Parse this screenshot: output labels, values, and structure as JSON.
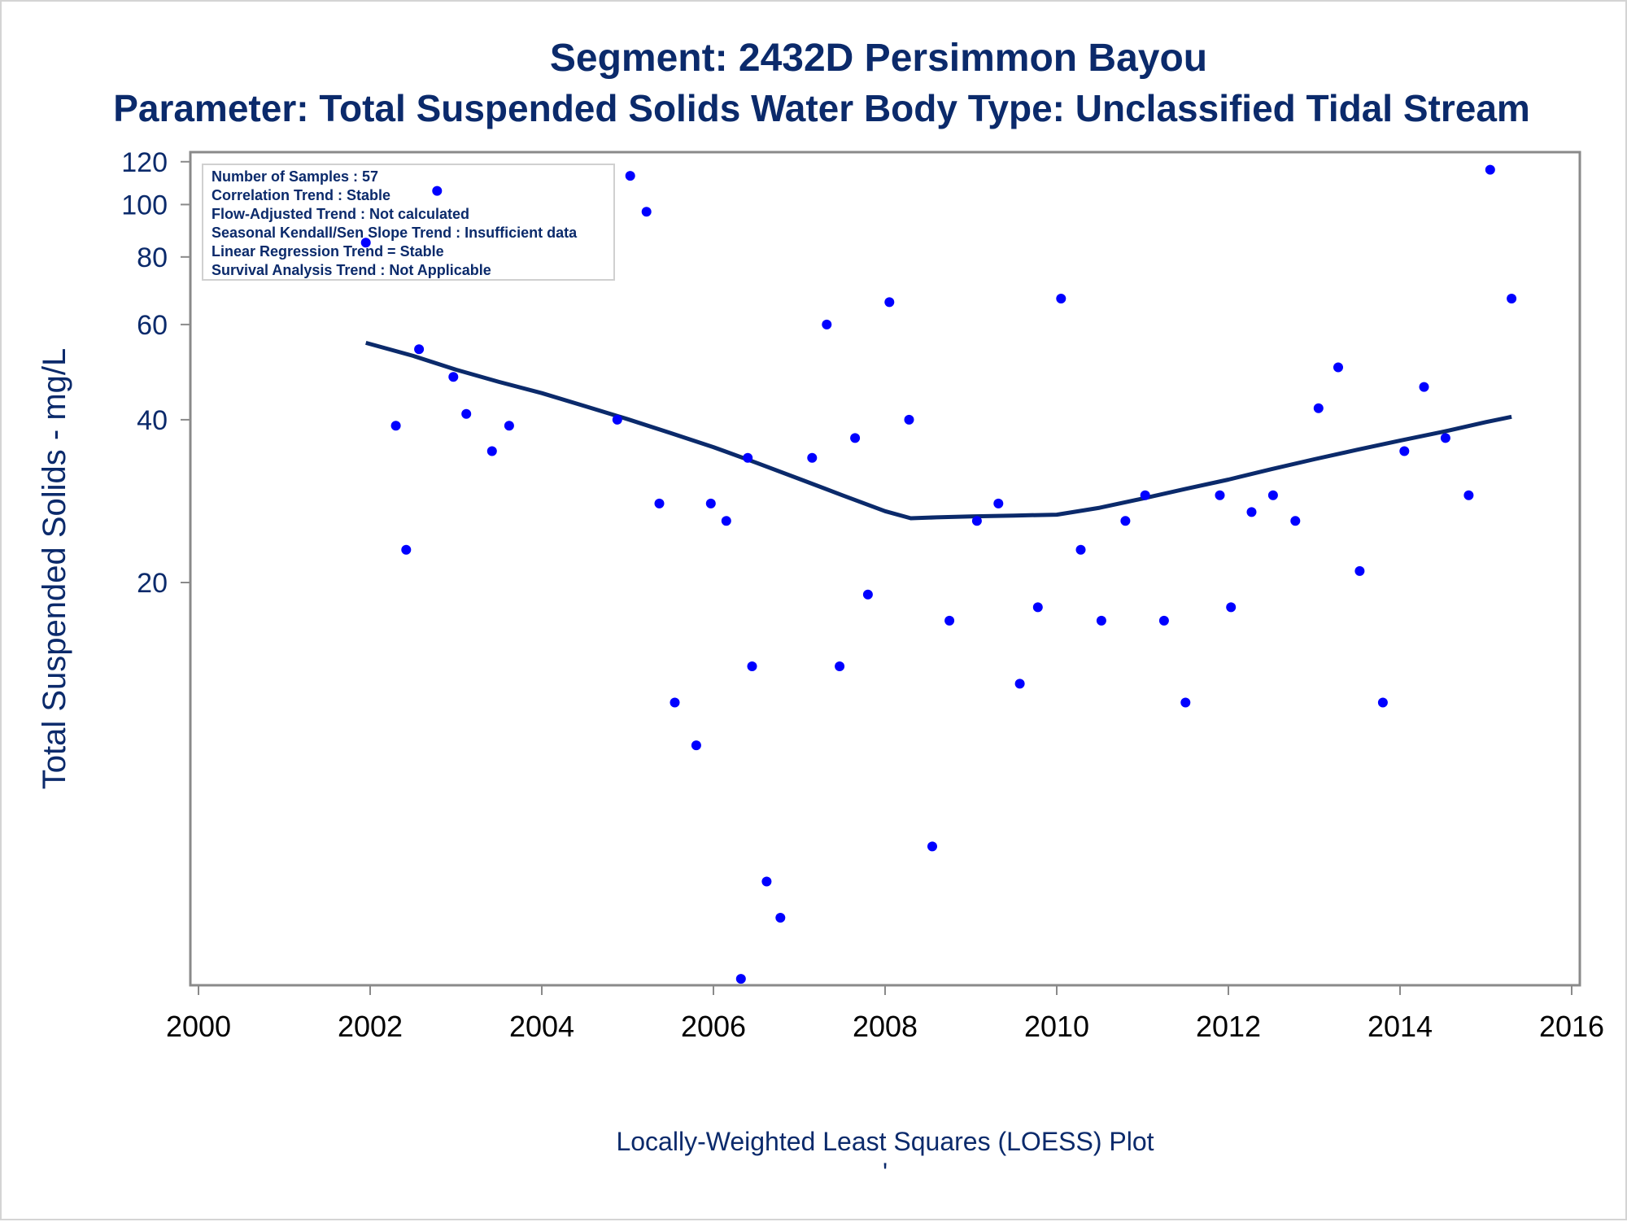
{
  "chart_data": {
    "type": "scatter",
    "title": "Segment: 2432D  Persimmon Bayou",
    "subtitle": "Parameter: Total Suspended Solids   Water Body Type: Unclassified Tidal Stream",
    "xlabel": "",
    "ylabel": "Total Suspended Solids - mg/L",
    "footnote": "Locally-Weighted Least Squares (LOESS) Plot",
    "footnote_mark": "'",
    "xlim": [
      2000,
      2016
    ],
    "ylim": [
      3.6,
      125
    ],
    "yscale": "log",
    "xticks": [
      "2000",
      "2002",
      "2004",
      "2006",
      "2008",
      "2010",
      "2012",
      "2014",
      "2016"
    ],
    "yticks": [
      "20",
      "40",
      "60",
      "80",
      "100",
      "120"
    ],
    "grid": false,
    "inset_box": {
      "position": "top-left",
      "lines": [
        "Number of Samples : 57",
        "Correlation Trend : Stable",
        "Flow-Adjusted Trend : Not calculated",
        "Seasonal Kendall/Sen Slope Trend : Insufficient data",
        "Linear Regression Trend = Stable",
        "Survival Analysis Trend : Not Applicable"
      ]
    },
    "colors": {
      "points": "#0000ff",
      "loess": "#0b2a6b",
      "text": "#0b2a6b",
      "frame": "#8a8a8a"
    },
    "series": [
      {
        "kind": "points",
        "x": [
          2001.95,
          2002.3,
          2002.42,
          2002.57,
          2002.78,
          2002.97,
          2003.12,
          2003.42,
          2003.62,
          2004.88,
          2005.03,
          2005.22,
          2005.37,
          2005.55,
          2005.8,
          2005.97,
          2006.15,
          2006.32,
          2006.4,
          2006.45,
          2006.62,
          2006.78,
          2007.15,
          2007.32,
          2007.47,
          2007.65,
          2007.8,
          2008.05,
          2008.28,
          2008.55,
          2008.75,
          2009.07,
          2009.32,
          2009.57,
          2009.78,
          2010.05,
          2010.28,
          2010.52,
          2010.8,
          2011.03,
          2011.25,
          2011.5,
          2011.9,
          2012.03,
          2012.27,
          2012.52,
          2012.78,
          2013.05,
          2013.28,
          2013.53,
          2013.8,
          2014.05,
          2014.28,
          2014.53,
          2014.8,
          2015.05,
          2015.3
        ],
        "y": [
          85,
          39,
          23,
          54,
          106,
          48,
          41,
          35,
          39,
          40,
          113,
          97,
          28,
          12,
          10,
          28,
          26,
          3.7,
          34,
          14,
          5.6,
          4.8,
          34,
          60,
          14,
          37,
          19,
          66,
          40,
          6.5,
          17,
          26,
          28,
          13,
          18,
          67,
          23,
          17,
          26,
          29,
          17,
          12,
          29,
          18,
          27,
          29,
          26,
          42,
          50,
          21,
          12,
          35,
          46,
          37,
          29,
          116,
          67
        ]
      },
      {
        "kind": "loess",
        "x": [
          2001.95,
          2002.5,
          2003.0,
          2003.5,
          2004.0,
          2004.5,
          2005.0,
          2005.5,
          2006.0,
          2006.5,
          2007.0,
          2007.5,
          2008.0,
          2008.3,
          2008.6,
          2009.0,
          2009.5,
          2010.0,
          2010.5,
          2011.0,
          2011.5,
          2012.0,
          2012.5,
          2013.0,
          2013.5,
          2014.0,
          2014.5,
          2015.0,
          2015.3
        ],
        "y": [
          55.5,
          52.5,
          49.5,
          47.0,
          44.8,
          42.4,
          40.1,
          37.8,
          35.6,
          33.3,
          31.1,
          29.0,
          27.1,
          26.3,
          26.4,
          26.5,
          26.6,
          26.7,
          27.5,
          28.6,
          29.8,
          31.0,
          32.4,
          33.8,
          35.2,
          36.6,
          38.0,
          39.6,
          40.5
        ]
      }
    ]
  }
}
